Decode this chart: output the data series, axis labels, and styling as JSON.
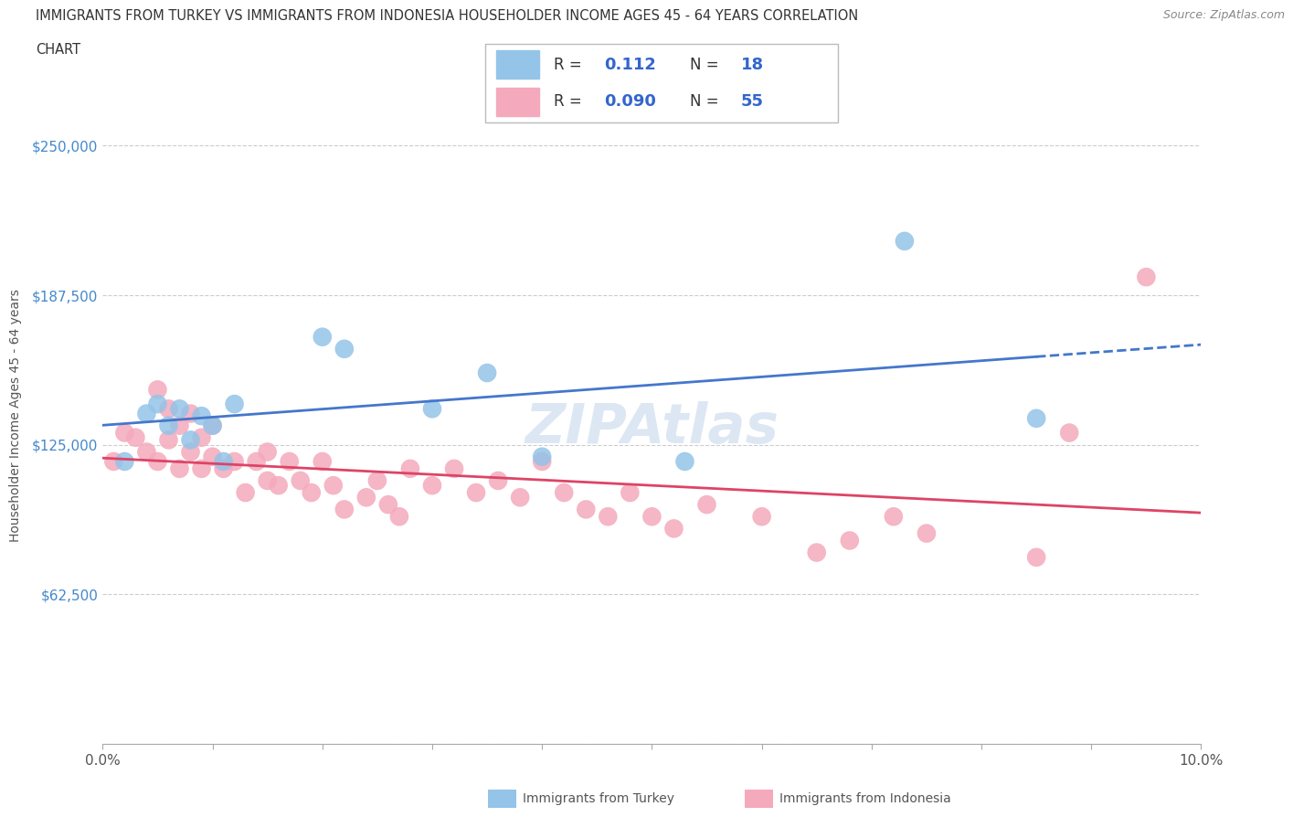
{
  "title_line1": "IMMIGRANTS FROM TURKEY VS IMMIGRANTS FROM INDONESIA HOUSEHOLDER INCOME AGES 45 - 64 YEARS CORRELATION",
  "title_line2": "CHART",
  "source_text": "Source: ZipAtlas.com",
  "ylabel": "Householder Income Ages 45 - 64 years",
  "xlim": [
    0,
    0.1
  ],
  "ylim": [
    0,
    275000
  ],
  "yticks": [
    0,
    62500,
    125000,
    187500,
    250000
  ],
  "ytick_labels": [
    "",
    "$62,500",
    "$125,000",
    "$187,500",
    "$250,000"
  ],
  "xticks": [
    0.0,
    0.01,
    0.02,
    0.03,
    0.04,
    0.05,
    0.06,
    0.07,
    0.08,
    0.09,
    0.1
  ],
  "xtick_labels": [
    "0.0%",
    "",
    "",
    "",
    "",
    "",
    "",
    "",
    "",
    "",
    "10.0%"
  ],
  "turkey_color": "#94C4E8",
  "indonesia_color": "#F4AABC",
  "turkey_line_color": "#4477CC",
  "indonesia_line_color": "#DD4466",
  "turkey_R": 0.112,
  "turkey_N": 18,
  "indonesia_R": 0.09,
  "indonesia_N": 55,
  "watermark": "ZIPAtlas",
  "grid_color": "#CCCCCC",
  "turkey_scatter_x": [
    0.002,
    0.004,
    0.005,
    0.006,
    0.007,
    0.008,
    0.009,
    0.01,
    0.011,
    0.012,
    0.02,
    0.022,
    0.03,
    0.035,
    0.04,
    0.053,
    0.073,
    0.085
  ],
  "turkey_scatter_y": [
    118000,
    138000,
    142000,
    133000,
    140000,
    127000,
    137000,
    133000,
    118000,
    142000,
    170000,
    165000,
    140000,
    155000,
    120000,
    118000,
    210000,
    136000
  ],
  "indonesia_scatter_x": [
    0.001,
    0.002,
    0.003,
    0.004,
    0.005,
    0.005,
    0.006,
    0.006,
    0.007,
    0.007,
    0.008,
    0.008,
    0.009,
    0.009,
    0.01,
    0.01,
    0.011,
    0.012,
    0.013,
    0.014,
    0.015,
    0.015,
    0.016,
    0.017,
    0.018,
    0.019,
    0.02,
    0.021,
    0.022,
    0.024,
    0.025,
    0.026,
    0.027,
    0.028,
    0.03,
    0.032,
    0.034,
    0.036,
    0.038,
    0.04,
    0.042,
    0.044,
    0.046,
    0.048,
    0.05,
    0.052,
    0.055,
    0.06,
    0.065,
    0.068,
    0.072,
    0.075,
    0.085,
    0.088,
    0.095
  ],
  "indonesia_scatter_y": [
    118000,
    130000,
    128000,
    122000,
    118000,
    148000,
    140000,
    127000,
    115000,
    133000,
    122000,
    138000,
    115000,
    128000,
    120000,
    133000,
    115000,
    118000,
    105000,
    118000,
    110000,
    122000,
    108000,
    118000,
    110000,
    105000,
    118000,
    108000,
    98000,
    103000,
    110000,
    100000,
    95000,
    115000,
    108000,
    115000,
    105000,
    110000,
    103000,
    118000,
    105000,
    98000,
    95000,
    105000,
    95000,
    90000,
    100000,
    95000,
    80000,
    85000,
    95000,
    88000,
    78000,
    130000,
    195000
  ]
}
